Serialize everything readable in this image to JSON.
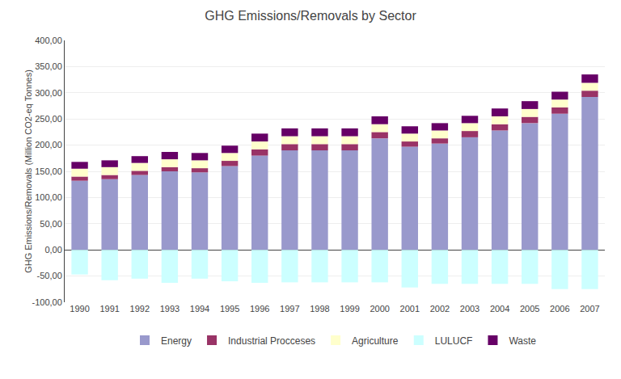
{
  "chart_data": {
    "type": "bar",
    "title": "GHG Emissions/Removals by Sector",
    "ylabel": "GHG Emissions/Removals (Million CO2-eq Tonnes)",
    "categories": [
      "1990",
      "1991",
      "1992",
      "1993",
      "1994",
      "1995",
      "1996",
      "1997",
      "1998",
      "1999",
      "2000",
      "2001",
      "2002",
      "2003",
      "2004",
      "2005",
      "2006",
      "2007"
    ],
    "series": [
      {
        "name": "Energy",
        "color": "#9999CC",
        "values": [
          132,
          135,
          143,
          150,
          148,
          160,
          180,
          190,
          190,
          190,
          213,
          197,
          203,
          215,
          228,
          242,
          260,
          292
        ]
      },
      {
        "name": "Industrial Procceses",
        "color": "#993366",
        "values": [
          8,
          8,
          8,
          8,
          8,
          10,
          12,
          12,
          12,
          12,
          12,
          10,
          10,
          12,
          12,
          12,
          12,
          12
        ]
      },
      {
        "name": "Agriculture",
        "color": "#FFFFCC",
        "values": [
          15,
          15,
          15,
          15,
          15,
          15,
          15,
          15,
          15,
          15,
          15,
          15,
          15,
          15,
          15,
          15,
          15,
          15
        ]
      },
      {
        "name": "LULUCF",
        "color": "#CCFFFF",
        "values": [
          -47,
          -58,
          -55,
          -63,
          -55,
          -60,
          -63,
          -62,
          -62,
          -62,
          -62,
          -72,
          -65,
          -65,
          -65,
          -65,
          -75,
          -75
        ]
      },
      {
        "name": "Waste",
        "color": "#660066",
        "values": [
          13,
          13,
          13,
          14,
          14,
          14,
          15,
          15,
          15,
          15,
          15,
          14,
          14,
          14,
          15,
          15,
          15,
          16
        ]
      }
    ],
    "stacked": true,
    "ylim": [
      -100,
      400
    ],
    "yticks": [
      {
        "value": -100,
        "label": "-100,00"
      },
      {
        "value": -50,
        "label": "-50,00"
      },
      {
        "value": 0,
        "label": "0,00"
      },
      {
        "value": 50,
        "label": "50,00"
      },
      {
        "value": 100,
        "label": "100,00"
      },
      {
        "value": 150,
        "label": "150,00"
      },
      {
        "value": 200,
        "label": "200,00"
      },
      {
        "value": 250,
        "label": "250,00"
      },
      {
        "value": 300,
        "label": "300,00"
      },
      {
        "value": 350,
        "label": "350,00"
      },
      {
        "value": 400,
        "label": "400,00"
      }
    ],
    "grid": true,
    "legend": "bottom"
  }
}
